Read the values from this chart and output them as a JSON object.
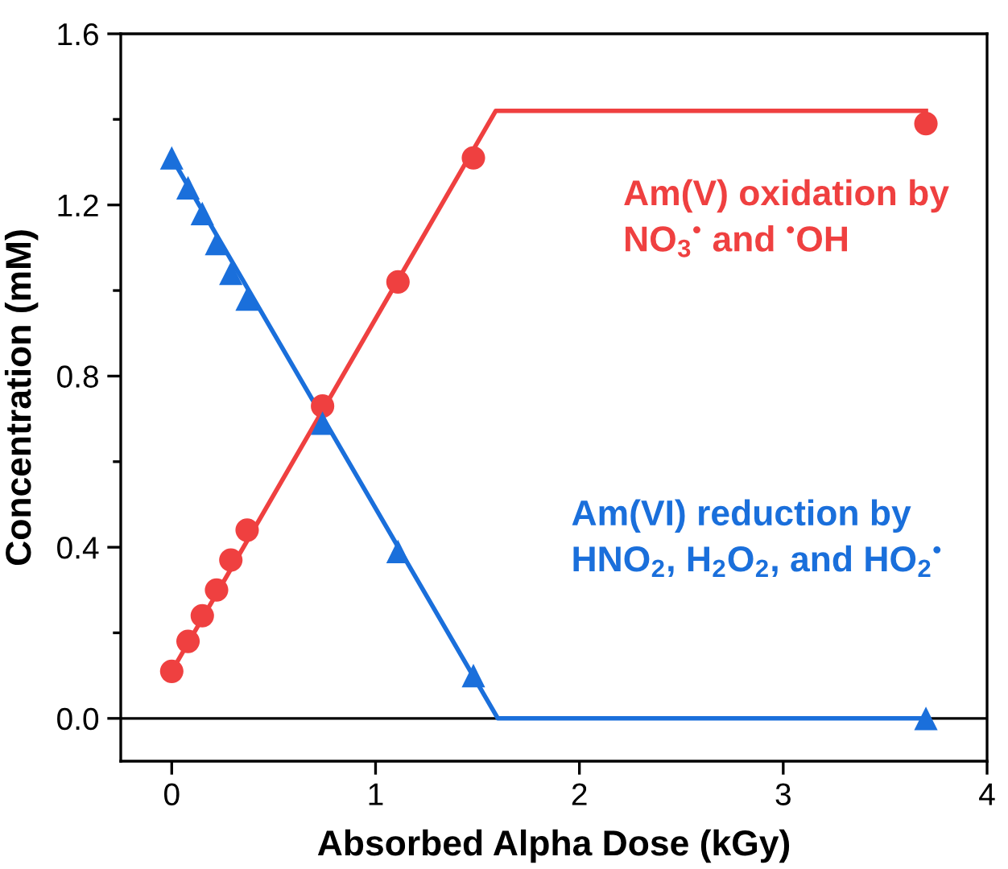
{
  "chart_data": {
    "type": "scatter",
    "xlabel": "Absorbed Alpha Dose (kGy)",
    "ylabel": "Concentration (mM)",
    "xlim": [
      -0.25,
      4
    ],
    "ylim": [
      -0.1,
      1.6
    ],
    "xticks": [
      0,
      1,
      2,
      3,
      4
    ],
    "yticks": [
      {
        "value": 0.0,
        "label": "0.0"
      },
      {
        "value": 0.2,
        "label": null
      },
      0.4,
      {
        "value": 0.6,
        "label": null
      },
      0.8,
      {
        "value": 1.0,
        "label": null
      },
      1.2,
      {
        "value": 1.4,
        "label": null
      },
      1.6
    ],
    "grid": false,
    "legend": false,
    "ref_lines": [
      {
        "axis": "y",
        "value": 0,
        "color": "#000000"
      }
    ],
    "annotations": [
      "Am(V) oxidation by\nNO$_{3}$$^{•}$ and $^{•}$OH",
      "Am(VI) reduction by\nHNO$_{2}$, H$_{2}$O$_{2}$, and HO$_{2}$$^{•}$"
    ],
    "series": [
      {
        "marker": "circle",
        "color": "#ef4040",
        "x": [
          0,
          0.08,
          0.15,
          0.22,
          0.29,
          0.37,
          0.74,
          1.11,
          1.48,
          3.7
        ],
        "values": [
          0.11,
          0.18,
          0.24,
          0.3,
          0.37,
          0.44,
          0.73,
          1.02,
          1.31,
          1.39
        ]
      },
      {
        "marker": "triangle",
        "color": "#1a6fdb",
        "x": [
          0,
          0.08,
          0.15,
          0.22,
          0.29,
          0.37,
          0.74,
          1.11,
          1.48,
          3.7
        ],
        "values": [
          1.31,
          1.24,
          1.18,
          1.11,
          1.04,
          0.98,
          0.69,
          0.39,
          0.1,
          0.0
        ]
      },
      {
        "type": "line",
        "color": "#ef4040",
        "x": [
          0,
          1.59,
          3.7
        ],
        "values": [
          0.11,
          1.42,
          1.42
        ]
      },
      {
        "type": "line",
        "color": "#1a6fdb",
        "x": [
          0,
          1.6,
          3.7
        ],
        "values": [
          1.31,
          0.0,
          0.0
        ]
      }
    ]
  }
}
